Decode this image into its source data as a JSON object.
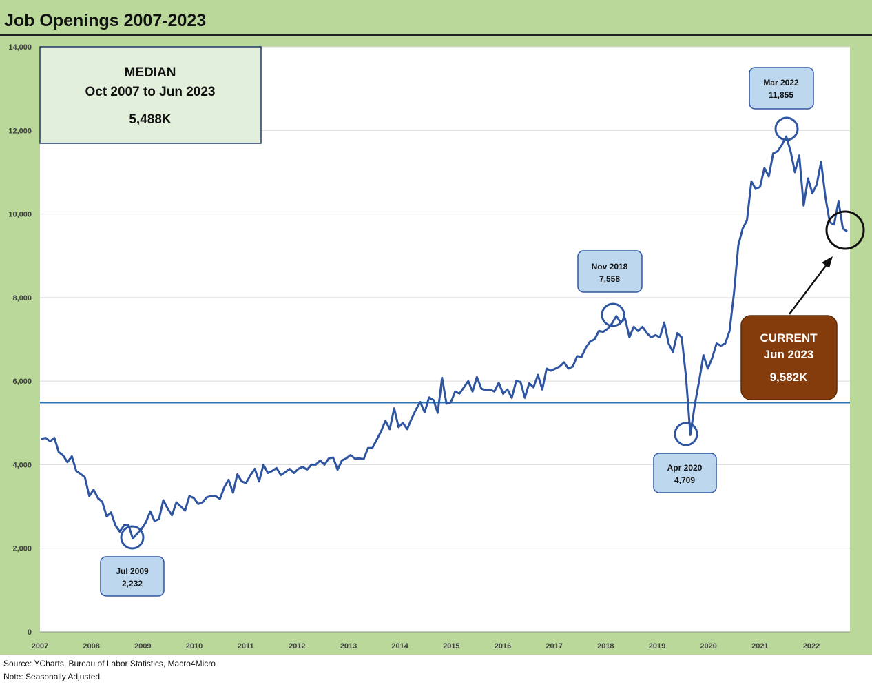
{
  "title": "Job Openings 2007-2023",
  "footer": {
    "source": "Source: YCharts, Bureau of Labor Statistics, Macro4Micro",
    "note": "Note: Seasonally Adjusted"
  },
  "colors": {
    "frame": "#b9d89a",
    "line": "#2f55a0",
    "median_line": "#2e74b5",
    "callout_fill": "#bdd7ee",
    "median_box_fill": "#e2efda",
    "current_box_fill": "#843c0c"
  },
  "median_box": {
    "line1": "MEDIAN",
    "line2": "Oct 2007 to Jun 2023",
    "value": "5,488K"
  },
  "current_box": {
    "line1": "CURRENT",
    "line2": "Jun 2023",
    "value": "9,582K"
  },
  "callouts": [
    {
      "id": "trough-2009",
      "label": "Jul 2009",
      "value": "2,232"
    },
    {
      "id": "peak-2018",
      "label": "Nov 2018",
      "value": "7,558"
    },
    {
      "id": "trough-2020",
      "label": "Apr 2020",
      "value": "4,709"
    },
    {
      "id": "peak-2022",
      "label": "Mar 2022",
      "value": "11,855"
    }
  ],
  "chart_data": {
    "type": "line",
    "title": "Job Openings 2007-2023",
    "xlabel": "",
    "ylabel": "",
    "ylim": [
      0,
      14000
    ],
    "y_ticks": [
      "0",
      "2,000",
      "4,000",
      "6,000",
      "8,000",
      "10,000",
      "12,000",
      "14,000"
    ],
    "x_ticks": [
      "2007",
      "2008",
      "2009",
      "2010",
      "2011",
      "2012",
      "2013",
      "2014",
      "2015",
      "2016",
      "2017",
      "2018",
      "2019",
      "2020",
      "2021",
      "2022"
    ],
    "grid": true,
    "median": 5488,
    "series": [
      {
        "values": [
          4620,
          4640,
          4560,
          4640,
          4300,
          4220,
          4060,
          4200,
          3850,
          3780,
          3700,
          3250,
          3400,
          3200,
          3110,
          2760,
          2860,
          2550,
          2400,
          2550,
          2560,
          2232,
          2350,
          2460,
          2620,
          2880,
          2650,
          2700,
          3150,
          2950,
          2790,
          3100,
          3000,
          2900,
          3250,
          3200,
          3060,
          3100,
          3220,
          3250,
          3250,
          3180,
          3460,
          3640,
          3330,
          3770,
          3600,
          3560,
          3750,
          3900,
          3600,
          4000,
          3800,
          3850,
          3920,
          3750,
          3820,
          3900,
          3800,
          3900,
          3950,
          3880,
          4000,
          4000,
          4100,
          4000,
          4150,
          4170,
          3880,
          4100,
          4150,
          4230,
          4140,
          4150,
          4130,
          4400,
          4400,
          4600,
          4800,
          5050,
          4850,
          5350,
          4900,
          5000,
          4850,
          5100,
          5320,
          5500,
          5250,
          5610,
          5550,
          5240,
          6080,
          5460,
          5490,
          5750,
          5700,
          5850,
          6000,
          5750,
          6100,
          5820,
          5780,
          5800,
          5750,
          5960,
          5700,
          5800,
          5600,
          6000,
          5980,
          5600,
          5950,
          5850,
          6150,
          5800,
          6300,
          6250,
          6300,
          6350,
          6450,
          6300,
          6350,
          6600,
          6580,
          6800,
          6950,
          7000,
          7200,
          7180,
          7250,
          7380,
          7558,
          7400,
          7500,
          7050,
          7300,
          7200,
          7300,
          7150,
          7050,
          7100,
          7050,
          7400,
          6900,
          6700,
          7150,
          7050,
          6100,
          4709,
          5420,
          6000,
          6620,
          6300,
          6550,
          6900,
          6850,
          6900,
          7200,
          8100,
          9250,
          9650,
          9850,
          10780,
          10600,
          10650,
          11100,
          10900,
          11450,
          11500,
          11650,
          11855,
          11500,
          11000,
          11400,
          10200,
          10850,
          10500,
          10700,
          11250,
          10400,
          9800,
          9750,
          10300,
          9650,
          9582
        ]
      }
    ]
  }
}
